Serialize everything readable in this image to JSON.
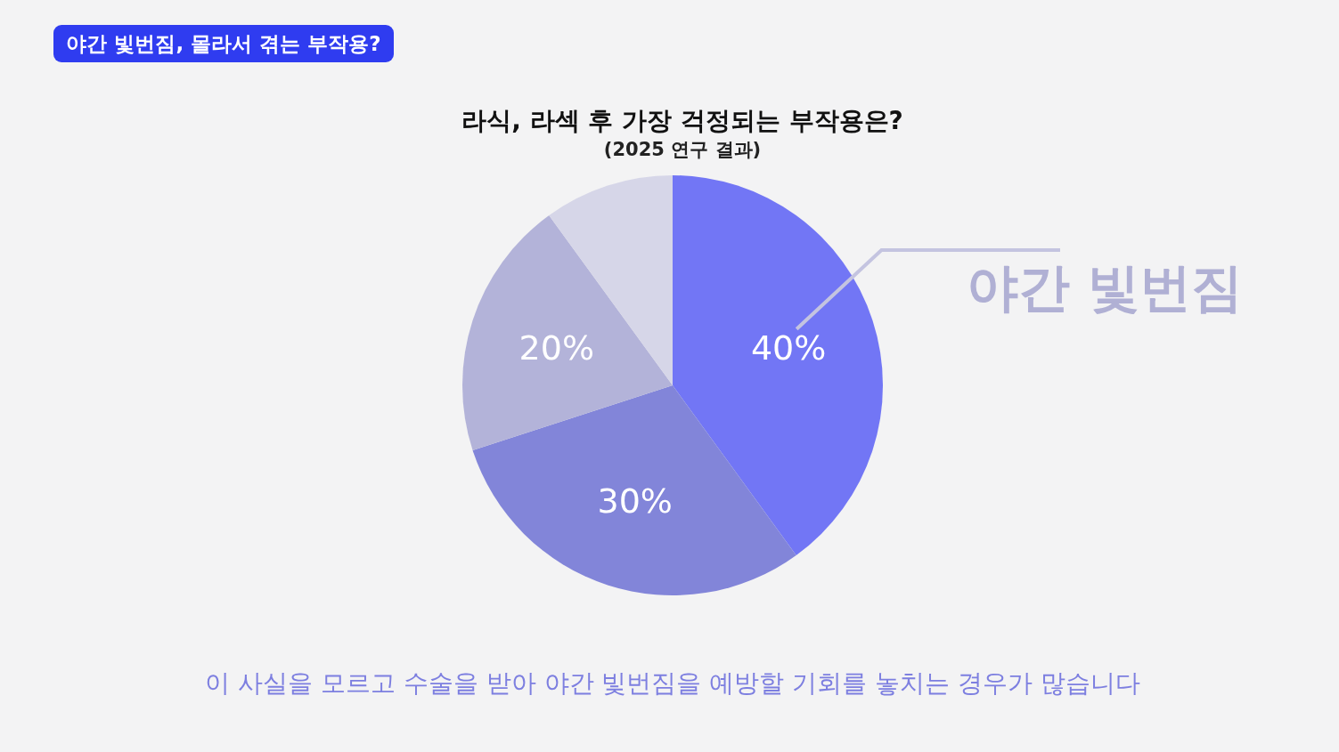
{
  "chart_data": {
    "type": "pie",
    "title": "라식, 라섹 후 가장 걱정되는 부작용은?",
    "subtitle": "(2025 연구 결과)",
    "categories": [
      "야간 빛번짐",
      null,
      null,
      null
    ],
    "values": [
      40,
      30,
      20,
      10
    ],
    "value_labels": [
      "40%",
      "30%",
      "20%",
      null
    ],
    "colors": [
      "#7276f5",
      "#8285d9",
      "#b3b3d9",
      "#d6d6e8"
    ],
    "annotations": [
      "야간 빛번짐, 몰라서 겪는 부작용?",
      "이 사실을 모르고 수술을 받아 야간 빛번짐을 예방할 기회를 놓치는 경우가 많습니다"
    ]
  }
}
